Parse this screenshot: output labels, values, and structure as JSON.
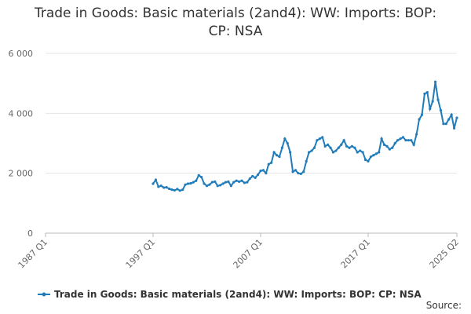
{
  "chart_data": {
    "type": "line",
    "title": "Trade in Goods: Basic materials (2and4): WW: Imports: BOP: CP: NSA",
    "source": "Source:",
    "x": [
      1997,
      1997.25,
      1997.5,
      1997.75,
      1998,
      1998.25,
      1998.5,
      1998.75,
      1999,
      1999.25,
      1999.5,
      1999.75,
      2000,
      2000.25,
      2000.5,
      2000.75,
      2001,
      2001.25,
      2001.5,
      2001.75,
      2002,
      2002.25,
      2002.5,
      2002.75,
      2003,
      2003.25,
      2003.5,
      2003.75,
      2004,
      2004.25,
      2004.5,
      2004.75,
      2005,
      2005.25,
      2005.5,
      2005.75,
      2006,
      2006.25,
      2006.5,
      2006.75,
      2007,
      2007.25,
      2007.5,
      2007.75,
      2008,
      2008.25,
      2008.5,
      2008.75,
      2009,
      2009.25,
      2009.5,
      2009.75,
      2010,
      2010.25,
      2010.5,
      2010.75,
      2011,
      2011.25,
      2011.5,
      2011.75,
      2012,
      2012.25,
      2012.5,
      2012.75,
      2013,
      2013.25,
      2013.5,
      2013.75,
      2014,
      2014.25,
      2014.5,
      2014.75,
      2015,
      2015.25,
      2015.5,
      2015.75,
      2016,
      2016.25,
      2016.5,
      2016.75,
      2017,
      2017.25,
      2017.5,
      2017.75,
      2018,
      2018.25,
      2018.5,
      2018.75,
      2019,
      2019.25,
      2019.5,
      2019.75,
      2020,
      2020.25,
      2020.5,
      2020.75,
      2021,
      2021.25,
      2021.5,
      2021.75,
      2022,
      2022.25,
      2022.5,
      2022.75,
      2023,
      2023.25,
      2023.5,
      2023.75,
      2024,
      2024.25,
      2024.5,
      2024.75,
      2025,
      2025.25
    ],
    "series": [
      {
        "name": "Trade in Goods: Basic materials (2and4): WW: Imports: BOP: CP: NSA",
        "color": "#207cba",
        "values": [
          1650,
          1780,
          1550,
          1580,
          1520,
          1530,
          1480,
          1450,
          1430,
          1470,
          1420,
          1450,
          1620,
          1650,
          1660,
          1700,
          1750,
          1930,
          1870,
          1650,
          1580,
          1620,
          1700,
          1720,
          1580,
          1600,
          1650,
          1700,
          1720,
          1580,
          1700,
          1750,
          1720,
          1750,
          1680,
          1700,
          1820,
          1900,
          1850,
          1950,
          2080,
          2100,
          2000,
          2300,
          2350,
          2700,
          2600,
          2550,
          2850,
          3150,
          3000,
          2700,
          2050,
          2100,
          2000,
          1980,
          2050,
          2400,
          2700,
          2750,
          2850,
          3100,
          3150,
          3200,
          2900,
          2950,
          2850,
          2700,
          2750,
          2850,
          2950,
          3100,
          2900,
          2850,
          2900,
          2850,
          2700,
          2750,
          2700,
          2450,
          2400,
          2550,
          2600,
          2650,
          2700,
          3150,
          2950,
          2900,
          2800,
          2850,
          3000,
          3100,
          3150,
          3200,
          3100,
          3100,
          3100,
          2950,
          3300,
          3800,
          3950,
          4650,
          4700,
          4150,
          4400,
          5050,
          4450,
          4100,
          3650,
          3650,
          3800,
          3950,
          3500,
          3850
        ]
      }
    ],
    "xlim": [
      1987,
      2025.25
    ],
    "xticks": [
      {
        "value": 1987,
        "label": "1987 Q1"
      },
      {
        "value": 1997,
        "label": "1997 Q1"
      },
      {
        "value": 2007,
        "label": "2007 Q1"
      },
      {
        "value": 2017,
        "label": "2017 Q1"
      },
      {
        "value": 2025.25,
        "label": "2025 Q2"
      }
    ],
    "ylim": [
      0,
      6000
    ],
    "yticks": [
      0,
      {
        "value": 2000,
        "label": "2 000"
      },
      {
        "value": 4000,
        "label": "4 000"
      },
      {
        "value": 6000,
        "label": "6 000"
      }
    ],
    "grid": true
  }
}
